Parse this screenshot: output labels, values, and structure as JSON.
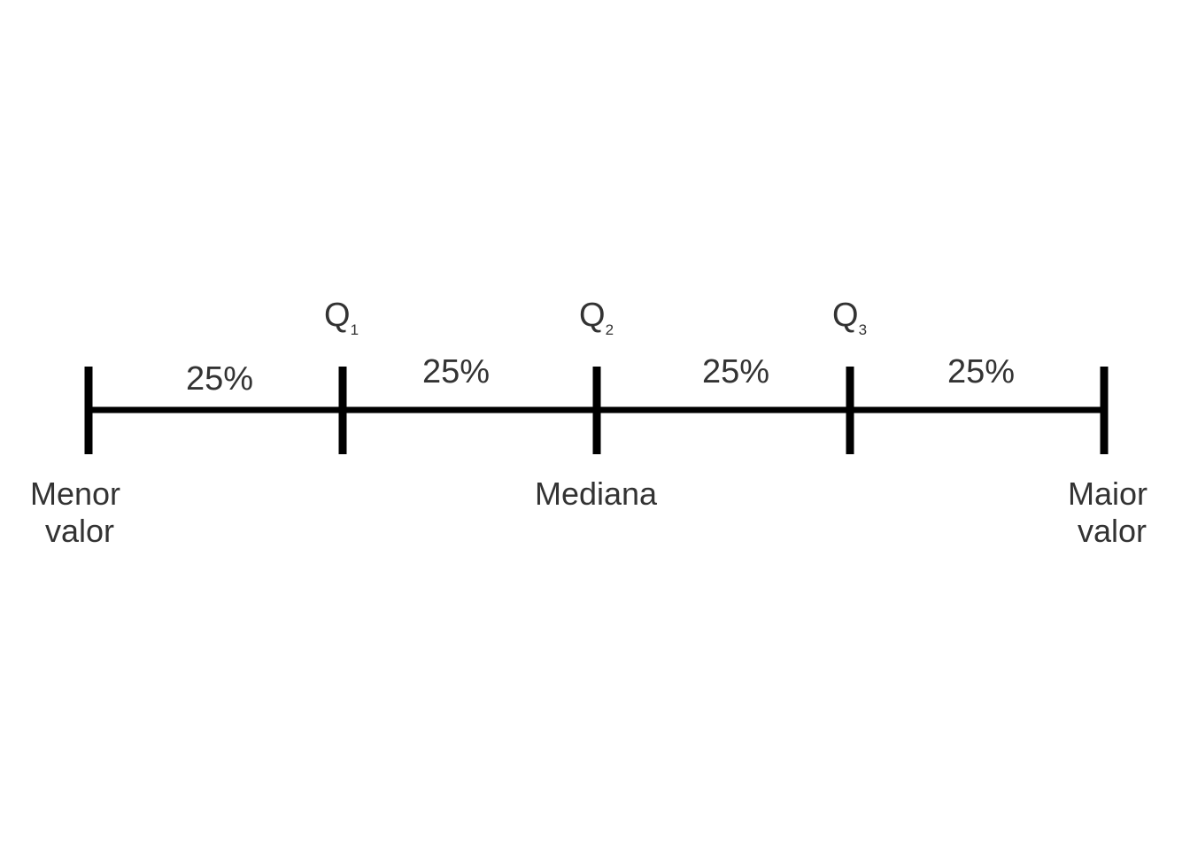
{
  "diagram": {
    "quartile_labels": [
      {
        "letter": "Q",
        "subscript": "1"
      },
      {
        "letter": "Q",
        "subscript": "2"
      },
      {
        "letter": "Q",
        "subscript": "3"
      }
    ],
    "segment_labels": [
      "25%",
      "25%",
      "25%",
      "25%"
    ],
    "bottom_labels": {
      "min": [
        "Menor",
        "valor"
      ],
      "median": "Mediana",
      "max": [
        "Maior",
        "valor"
      ]
    }
  }
}
